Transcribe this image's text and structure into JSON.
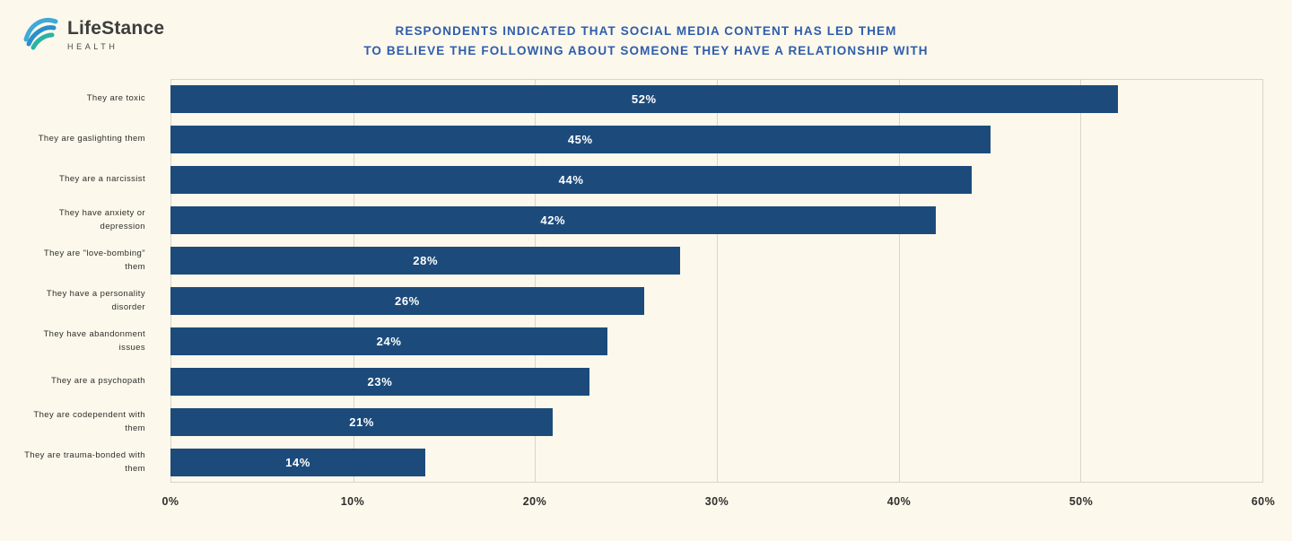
{
  "logo": {
    "name": "LifeStance",
    "subtitle": "HEALTH"
  },
  "title": {
    "line1": "RESPONDENTS INDICATED THAT SOCIAL MEDIA CONTENT HAS LED THEM",
    "line2": "TO BELIEVE THE FOLLOWING ABOUT SOMEONE THEY HAVE A RELATIONSHIP WITH"
  },
  "colors": {
    "background": "#fcf8eb",
    "bar": "#1c4b7b",
    "title_text": "#2e5dad",
    "gridline": "#d9d5c8",
    "logo_blue": "#3fa9d9",
    "logo_teal": "#2bb3a3"
  },
  "chart_data": {
    "type": "bar",
    "orientation": "horizontal",
    "title": "RESPONDENTS INDICATED THAT SOCIAL MEDIA CONTENT HAS LED THEM TO BELIEVE THE FOLLOWING ABOUT SOMEONE THEY HAVE A RELATIONSHIP WITH",
    "categories": [
      "They are toxic",
      "They are gaslighting them",
      "They are a narcissist",
      "They have anxiety or depression",
      "They are \"love-bombing\" them",
      "They have a personality disorder",
      "They have abandonment issues",
      "They are a psychopath",
      "They are codependent with them",
      "They are trauma-bonded with them"
    ],
    "values": [
      52,
      45,
      44,
      42,
      28,
      26,
      24,
      23,
      21,
      14
    ],
    "value_labels": [
      "52%",
      "45%",
      "44%",
      "42%",
      "28%",
      "26%",
      "24%",
      "23%",
      "21%",
      "14%"
    ],
    "xlabel": "",
    "ylabel": "",
    "xlim": [
      0,
      60
    ],
    "x_ticks": [
      "0%",
      "10%",
      "20%",
      "30%",
      "40%",
      "50%",
      "60%"
    ],
    "grid": true,
    "legend": false
  }
}
